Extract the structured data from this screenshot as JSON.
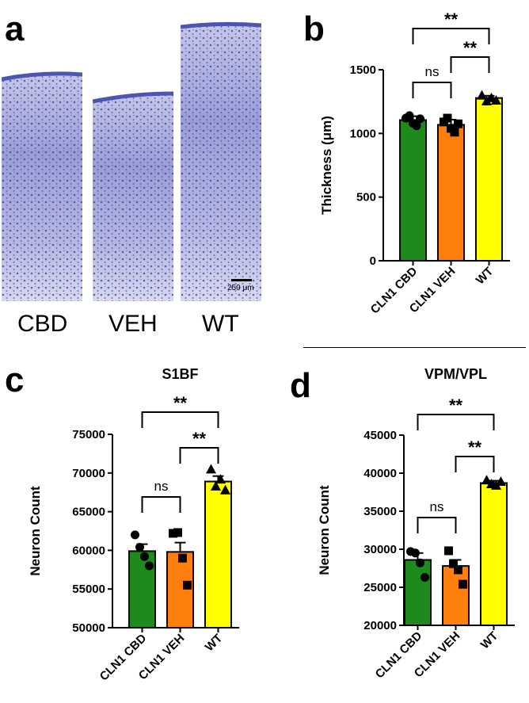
{
  "panel_a": {
    "letter": "a",
    "scale_bar_label": "250 μm",
    "captions": [
      "CBD",
      "VEH",
      "WT"
    ],
    "stain_color": "#5058b8"
  },
  "chart_data": [
    {
      "panel": "b",
      "type": "bar",
      "title": "",
      "xlabel": "",
      "ylabel": "Thickness (μm)",
      "ylim": [
        0,
        1500
      ],
      "yticks": [
        0,
        500,
        1000,
        1500
      ],
      "categories": [
        "CLN1 CBD",
        "CLN1 VEH",
        "WT"
      ],
      "values": [
        1105,
        1068,
        1278
      ],
      "errors": [
        30,
        40,
        18
      ],
      "colors": [
        "#1e8a1e",
        "#ff7f0e",
        "#ffff00"
      ],
      "markers": [
        "circle",
        "square",
        "triangle"
      ],
      "points": [
        [
          1120,
          1140,
          1080,
          1060,
          1115
        ],
        [
          1090,
          1120,
          1040,
          1010,
          1075
        ],
        [
          1300,
          1255,
          1280,
          1260
        ]
      ],
      "comparisons": [
        {
          "from": 0,
          "to": 2,
          "label": "**"
        },
        {
          "from": 1,
          "to": 2,
          "label": "**"
        },
        {
          "from": 0,
          "to": 1,
          "label": "ns"
        }
      ]
    },
    {
      "panel": "c",
      "type": "bar",
      "title": "S1BF",
      "xlabel": "",
      "ylabel": "Neuron Count",
      "ylim": [
        50000,
        75000
      ],
      "yticks": [
        50000,
        55000,
        60000,
        65000,
        70000,
        75000
      ],
      "categories": [
        "CLN1 CBD",
        "CLN1 VEH",
        "WT"
      ],
      "values": [
        59900,
        59800,
        68900
      ],
      "errors": [
        900,
        1200,
        700
      ],
      "colors": [
        "#1e8a1e",
        "#ff7f0e",
        "#ffff00"
      ],
      "markers": [
        "circle",
        "square",
        "triangle"
      ],
      "points": [
        [
          62000,
          60400,
          59200,
          58000
        ],
        [
          62200,
          62300,
          59000,
          55500
        ],
        [
          70500,
          68300,
          69200,
          67800
        ]
      ],
      "comparisons": [
        {
          "from": 0,
          "to": 2,
          "label": "**"
        },
        {
          "from": 1,
          "to": 2,
          "label": "**"
        },
        {
          "from": 0,
          "to": 1,
          "label": "ns"
        }
      ]
    },
    {
      "panel": "d",
      "type": "bar",
      "title": "VPM/VPL",
      "xlabel": "",
      "ylabel": "Neuron Count",
      "ylim": [
        20000,
        45000
      ],
      "yticks": [
        20000,
        25000,
        30000,
        35000,
        40000,
        45000
      ],
      "categories": [
        "CLN1 CBD",
        "CLN1 VEH",
        "WT"
      ],
      "values": [
        28600,
        27800,
        38700
      ],
      "errors": [
        900,
        800,
        300
      ],
      "colors": [
        "#1e8a1e",
        "#ff7f0e",
        "#ffff00"
      ],
      "markers": [
        "circle",
        "square",
        "triangle"
      ],
      "points": [
        [
          29700,
          29500,
          28200,
          26300
        ],
        [
          29800,
          28100,
          27300,
          25400
        ],
        [
          39100,
          38600,
          38400,
          38900
        ]
      ],
      "comparisons": [
        {
          "from": 0,
          "to": 2,
          "label": "**"
        },
        {
          "from": 1,
          "to": 2,
          "label": "**"
        },
        {
          "from": 0,
          "to": 1,
          "label": "ns"
        }
      ]
    }
  ]
}
